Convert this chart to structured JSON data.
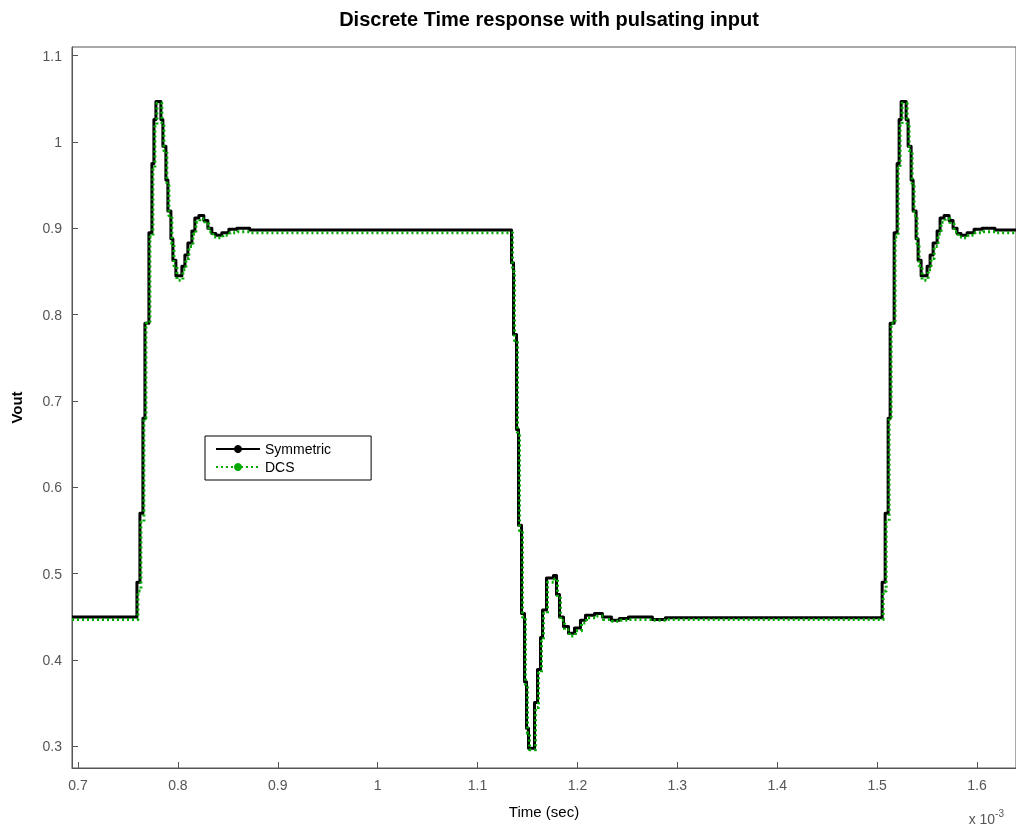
{
  "chart_data": {
    "type": "step",
    "title": "Discrete Time response with pulsating input",
    "xlabel": "Time (sec)",
    "ylabel": "Vout",
    "annotations": [
      "x 10$^{-3}$"
    ],
    "xlim": [
      0.694,
      1.639
    ],
    "xticks": [
      0.7,
      0.8,
      0.9,
      1,
      1.1,
      1.2,
      1.3,
      1.4,
      1.5,
      1.6
    ],
    "ylim": [
      0.275,
      1.11
    ],
    "yticks": [
      0.3,
      0.4,
      0.5,
      0.6,
      0.7,
      0.8,
      0.9,
      1,
      1.1
    ],
    "grid": false,
    "legend": "center left",
    "marker": "none",
    "series": [
      {
        "name": "Symmetric",
        "color": "#000000",
        "line_style": "solid",
        "x": [
          0.694,
          0.759,
          0.762,
          0.765,
          0.767,
          0.771,
          0.774,
          0.776,
          0.778,
          0.783,
          0.785,
          0.788,
          0.79,
          0.793,
          0.795,
          0.798,
          0.804,
          0.807,
          0.81,
          0.814,
          0.817,
          0.821,
          0.826,
          0.83,
          0.834,
          0.838,
          0.844,
          0.851,
          0.859,
          0.872,
          1.134,
          1.136,
          1.139,
          1.141,
          1.144,
          1.147,
          1.149,
          1.151,
          1.157,
          1.16,
          1.163,
          1.165,
          1.169,
          1.176,
          1.179,
          1.182,
          1.186,
          1.191,
          1.197,
          1.203,
          1.208,
          1.217,
          1.225,
          1.234,
          1.242,
          1.251,
          1.275,
          1.288,
          1.505,
          1.508,
          1.511,
          1.513,
          1.517,
          1.52,
          1.522,
          1.524,
          1.529,
          1.531,
          1.534,
          1.536,
          1.539,
          1.541,
          1.544,
          1.55,
          1.553,
          1.556,
          1.56,
          1.563,
          1.567,
          1.572,
          1.576,
          1.58,
          1.584,
          1.59,
          1.597,
          1.605,
          1.618,
          1.639
        ],
        "values": [
          0.45,
          0.49,
          0.57,
          0.68,
          0.79,
          0.895,
          0.975,
          1.026,
          1.047,
          1.026,
          0.995,
          0.956,
          0.92,
          0.888,
          0.863,
          0.845,
          0.856,
          0.869,
          0.883,
          0.897,
          0.912,
          0.915,
          0.909,
          0.9,
          0.894,
          0.892,
          0.895,
          0.899,
          0.9,
          0.898,
          0.86,
          0.777,
          0.667,
          0.556,
          0.454,
          0.375,
          0.321,
          0.298,
          0.351,
          0.389,
          0.426,
          0.458,
          0.495,
          0.498,
          0.476,
          0.45,
          0.439,
          0.431,
          0.437,
          0.446,
          0.452,
          0.454,
          0.45,
          0.446,
          0.448,
          0.45,
          0.447,
          0.449,
          0.49,
          0.57,
          0.68,
          0.79,
          0.895,
          0.975,
          1.026,
          1.047,
          1.026,
          0.995,
          0.956,
          0.92,
          0.888,
          0.863,
          0.845,
          0.856,
          0.869,
          0.883,
          0.897,
          0.912,
          0.915,
          0.909,
          0.9,
          0.894,
          0.892,
          0.895,
          0.899,
          0.9,
          0.898,
          0.898
        ]
      },
      {
        "name": "DCS",
        "color": "#00aa00",
        "line_style": "dotted",
        "x": [
          0.694,
          0.76,
          0.763,
          0.766,
          0.768,
          0.772,
          0.775,
          0.777,
          0.779,
          0.784,
          0.786,
          0.789,
          0.791,
          0.794,
          0.796,
          0.799,
          0.805,
          0.808,
          0.811,
          0.815,
          0.818,
          0.822,
          0.827,
          0.831,
          0.835,
          0.839,
          0.845,
          0.852,
          0.86,
          0.873,
          1.135,
          1.137,
          1.14,
          1.142,
          1.145,
          1.148,
          1.15,
          1.152,
          1.158,
          1.161,
          1.164,
          1.166,
          1.17,
          1.177,
          1.18,
          1.183,
          1.187,
          1.192,
          1.198,
          1.204,
          1.209,
          1.218,
          1.226,
          1.235,
          1.243,
          1.252,
          1.276,
          1.289,
          1.506,
          1.509,
          1.512,
          1.514,
          1.518,
          1.521,
          1.523,
          1.525,
          1.53,
          1.532,
          1.535,
          1.537,
          1.54,
          1.542,
          1.545,
          1.551,
          1.554,
          1.557,
          1.561,
          1.564,
          1.568,
          1.573,
          1.577,
          1.581,
          1.585,
          1.591,
          1.598,
          1.606,
          1.619,
          1.639
        ],
        "values": [
          0.447,
          0.48,
          0.56,
          0.68,
          0.79,
          0.89,
          0.97,
          1.02,
          1.045,
          1.02,
          0.99,
          0.95,
          0.915,
          0.882,
          0.857,
          0.84,
          0.852,
          0.865,
          0.879,
          0.893,
          0.907,
          0.911,
          0.905,
          0.896,
          0.89,
          0.889,
          0.892,
          0.895,
          0.896,
          0.895,
          0.85,
          0.77,
          0.66,
          0.55,
          0.45,
          0.37,
          0.315,
          0.296,
          0.345,
          0.385,
          0.422,
          0.454,
          0.49,
          0.494,
          0.472,
          0.446,
          0.435,
          0.428,
          0.434,
          0.443,
          0.449,
          0.451,
          0.447,
          0.445,
          0.446,
          0.447,
          0.446,
          0.447,
          0.48,
          0.56,
          0.68,
          0.79,
          0.89,
          0.97,
          1.02,
          1.045,
          1.02,
          0.99,
          0.95,
          0.915,
          0.882,
          0.857,
          0.84,
          0.852,
          0.865,
          0.879,
          0.893,
          0.907,
          0.911,
          0.905,
          0.896,
          0.89,
          0.889,
          0.892,
          0.895,
          0.896,
          0.895,
          0.895
        ]
      }
    ]
  }
}
